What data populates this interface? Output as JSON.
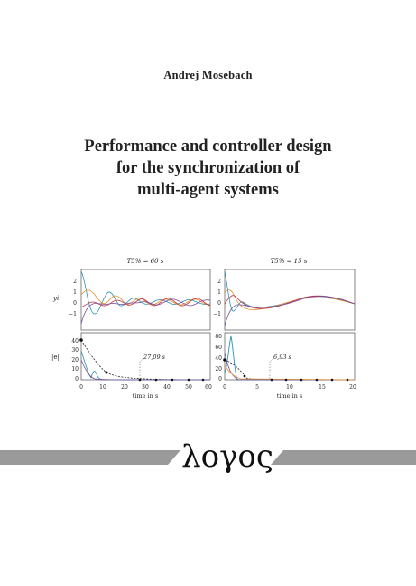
{
  "author": "Andrej Mosebach",
  "title_lines": [
    "Performance and controller design",
    "for the synchronization of",
    "multi-agent systems"
  ],
  "figure": {
    "left_panel_title": "T5% = 60 s",
    "right_panel_title": "T5% = 15 s",
    "top_ylabel": "yi",
    "bottom_ylabel": "|e|",
    "xlabel": "time in s",
    "left_annotation": "27,09 s",
    "right_annotation": "6,93 s",
    "top_yticks": [
      "2",
      "1",
      "0",
      "−1"
    ],
    "left_bottom_yticks": [
      "40",
      "30",
      "20",
      "10",
      "0"
    ],
    "right_bottom_yticks": [
      "80",
      "60",
      "40",
      "20",
      "0"
    ],
    "left_xticks": [
      "0",
      "10",
      "20",
      "30",
      "40",
      "50",
      "60"
    ],
    "right_xticks": [
      "0",
      "5",
      "10",
      "15",
      "20"
    ]
  },
  "publisher_logo": "λογος",
  "colors": {
    "logo_bar": "#9a9a9a",
    "cyan": "#2a8fb5",
    "orange": "#e0902a",
    "red": "#c0303a",
    "purple": "#7b4d9a"
  }
}
